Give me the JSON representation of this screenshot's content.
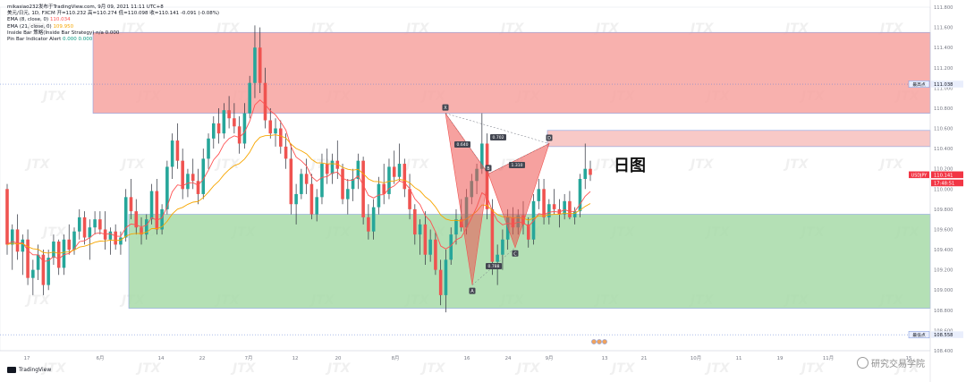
{
  "header": {
    "title_line": "美元/日元, 1D, FXCM  开=110.232  高=110.274  低=110.098  收=110.141  -0.091 (-0.08%)",
    "user_line": "mikasiao232发布于TradingView.com, 9月 09, 2021 11:11 UTC+8",
    "indicators": [
      {
        "name": "EMA (8, close, 0)",
        "value": "110.034",
        "color": "#ff5252"
      },
      {
        "name": "EMA (21, close, 0)",
        "value": "109.950",
        "color": "#f7a600"
      },
      {
        "name": "Inside Bar 策略(Inside Bar Strategy)",
        "value": "n/a  0.000",
        "color": "#131722"
      },
      {
        "name": "Pin Bar Indicator Alert",
        "value": "0.000  0.000",
        "color": "#089981"
      }
    ]
  },
  "branding": {
    "watermark": "JTX",
    "tradingview": "TradingView",
    "corner_watermark": "研究交易学院",
    "day_chart_label": "日图"
  },
  "chart_data": {
    "type": "candlestick",
    "symbol": "USDJPY",
    "ylim": [
      108.4,
      111.8
    ],
    "y_ticks": [
      "111.800",
      "111.600",
      "111.400",
      "111.200",
      "111.000",
      "110.800",
      "110.600",
      "110.400",
      "110.200",
      "110.000",
      "109.800",
      "109.600",
      "109.400",
      "109.200",
      "109.000",
      "108.800",
      "108.600",
      "108.400"
    ],
    "x_ticks": [
      "17",
      "6月",
      "14",
      "22",
      "7月",
      "12",
      "20",
      "8月",
      "16",
      "24",
      "9月",
      "13",
      "21",
      "10月",
      "11",
      "19",
      "11月",
      "15"
    ],
    "price_labels": [
      {
        "text": "110.141",
        "value": 110.141,
        "color": "#f23645"
      },
      {
        "text": "17:48:51",
        "value": 110.06,
        "color": "#f23645"
      },
      {
        "text": "111.038",
        "value": 111.038,
        "color": "#5b7bd5"
      },
      {
        "text": "108.558",
        "value": 108.558,
        "color": "#5b7bd5"
      }
    ],
    "axis_tags": [
      {
        "text": "USDJPY",
        "value": 110.141
      },
      {
        "text": "最高点",
        "value": 111.038
      },
      {
        "text": "最低点",
        "value": 108.558
      }
    ],
    "zones": [
      {
        "name": "resistance",
        "from": 110.75,
        "to": 111.55,
        "color": "#f7a3a0"
      },
      {
        "name": "resistance-thin",
        "from": 110.42,
        "to": 110.58,
        "color": "#f7c0bd"
      },
      {
        "name": "support",
        "from": 108.82,
        "to": 109.75,
        "color": "#a7dba8"
      }
    ],
    "harmonic": {
      "points": [
        {
          "label": "X",
          "value": 110.75
        },
        {
          "label": "A",
          "value": 109.05
        },
        {
          "label": "B",
          "value": 110.15
        },
        {
          "label": "C",
          "value": 109.42
        },
        {
          "label": "D",
          "value": 110.45
        }
      ],
      "ratios": [
        "0.640",
        "0.702",
        "0.788",
        "1.310"
      ]
    },
    "candles": [
      [
        110.0,
        110.05,
        109.35,
        109.45
      ],
      [
        109.45,
        109.65,
        109.2,
        109.6
      ],
      [
        109.6,
        109.75,
        109.3,
        109.38
      ],
      [
        109.38,
        109.55,
        109.15,
        109.5
      ],
      [
        109.5,
        109.6,
        109.05,
        109.12
      ],
      [
        109.12,
        109.3,
        108.95,
        109.2
      ],
      [
        109.2,
        109.45,
        109.1,
        109.35
      ],
      [
        109.35,
        109.4,
        108.95,
        109.05
      ],
      [
        109.05,
        109.4,
        109.0,
        109.32
      ],
      [
        109.32,
        109.55,
        109.25,
        109.48
      ],
      [
        109.48,
        109.5,
        109.15,
        109.22
      ],
      [
        109.22,
        109.55,
        109.15,
        109.5
      ],
      [
        109.5,
        109.65,
        109.35,
        109.4
      ],
      [
        109.4,
        109.62,
        109.35,
        109.58
      ],
      [
        109.58,
        109.8,
        109.5,
        109.72
      ],
      [
        109.72,
        109.78,
        109.45,
        109.52
      ],
      [
        109.52,
        109.7,
        109.3,
        109.62
      ],
      [
        109.62,
        109.78,
        109.55,
        109.7
      ],
      [
        109.7,
        109.78,
        109.55,
        109.6
      ],
      [
        109.6,
        109.78,
        109.4,
        109.5
      ],
      [
        109.5,
        109.62,
        109.35,
        109.58
      ],
      [
        109.58,
        109.65,
        109.4,
        109.45
      ],
      [
        109.45,
        109.58,
        109.35,
        109.52
      ],
      [
        109.52,
        110.0,
        109.48,
        109.92
      ],
      [
        109.92,
        110.1,
        109.7,
        109.78
      ],
      [
        109.78,
        109.9,
        109.55,
        109.62
      ],
      [
        109.62,
        109.72,
        109.45,
        109.55
      ],
      [
        109.55,
        109.75,
        109.5,
        109.7
      ],
      [
        109.7,
        110.05,
        109.65,
        109.98
      ],
      [
        109.98,
        110.1,
        109.55,
        109.6
      ],
      [
        109.6,
        109.85,
        109.55,
        109.8
      ],
      [
        109.8,
        110.28,
        109.75,
        110.22
      ],
      [
        110.22,
        110.55,
        110.1,
        110.48
      ],
      [
        110.48,
        110.65,
        110.2,
        110.28
      ],
      [
        110.28,
        110.4,
        109.9,
        110.0
      ],
      [
        110.0,
        110.2,
        109.92,
        110.15
      ],
      [
        110.15,
        110.3,
        110.0,
        110.08
      ],
      [
        110.08,
        110.2,
        109.85,
        109.95
      ],
      [
        109.95,
        110.4,
        109.9,
        110.3
      ],
      [
        110.3,
        110.55,
        110.2,
        110.5
      ],
      [
        110.5,
        110.72,
        110.4,
        110.65
      ],
      [
        110.65,
        110.8,
        110.45,
        110.55
      ],
      [
        110.55,
        110.85,
        110.5,
        110.78
      ],
      [
        110.78,
        110.92,
        110.6,
        110.7
      ],
      [
        110.7,
        110.85,
        110.55,
        110.62
      ],
      [
        110.62,
        110.72,
        110.35,
        110.45
      ],
      [
        110.45,
        110.85,
        110.4,
        110.75
      ],
      [
        110.75,
        111.12,
        110.7,
        111.05
      ],
      [
        111.05,
        111.62,
        110.9,
        111.4
      ],
      [
        111.4,
        111.6,
        110.95,
        111.05
      ],
      [
        111.05,
        111.2,
        110.6,
        110.68
      ],
      [
        110.68,
        110.8,
        110.5,
        110.55
      ],
      [
        110.55,
        110.7,
        110.42,
        110.6
      ],
      [
        110.6,
        110.68,
        110.35,
        110.42
      ],
      [
        110.42,
        110.55,
        110.2,
        110.3
      ],
      [
        110.3,
        110.45,
        109.75,
        109.85
      ],
      [
        109.85,
        110.05,
        109.65,
        109.95
      ],
      [
        109.95,
        110.2,
        109.9,
        110.15
      ],
      [
        110.15,
        110.3,
        109.95,
        110.05
      ],
      [
        110.05,
        110.15,
        109.7,
        109.75
      ],
      [
        109.75,
        110.0,
        109.68,
        109.92
      ],
      [
        109.92,
        110.35,
        109.85,
        110.25
      ],
      [
        110.25,
        110.4,
        110.05,
        110.15
      ],
      [
        110.15,
        110.35,
        110.05,
        110.28
      ],
      [
        110.28,
        110.48,
        110.1,
        110.2
      ],
      [
        110.2,
        110.25,
        109.85,
        109.9
      ],
      [
        109.9,
        110.1,
        109.75,
        110.0
      ],
      [
        110.0,
        110.2,
        109.88,
        110.1
      ],
      [
        110.1,
        110.35,
        110.0,
        110.28
      ],
      [
        110.28,
        110.32,
        109.65,
        109.72
      ],
      [
        109.72,
        109.85,
        109.5,
        109.58
      ],
      [
        109.58,
        109.9,
        109.5,
        109.82
      ],
      [
        109.82,
        110.12,
        109.75,
        110.05
      ],
      [
        110.05,
        110.25,
        109.85,
        109.95
      ],
      [
        109.95,
        110.3,
        109.9,
        110.22
      ],
      [
        110.22,
        110.38,
        110.05,
        110.12
      ],
      [
        110.12,
        110.45,
        110.08,
        110.25
      ],
      [
        110.25,
        110.3,
        109.92,
        110.0
      ],
      [
        110.0,
        110.15,
        109.7,
        109.8
      ],
      [
        109.8,
        109.85,
        109.45,
        109.55
      ],
      [
        109.55,
        109.7,
        109.35,
        109.65
      ],
      [
        109.65,
        109.78,
        109.25,
        109.35
      ],
      [
        109.35,
        109.6,
        109.28,
        109.5
      ],
      [
        109.5,
        109.58,
        109.15,
        109.2
      ],
      [
        109.2,
        109.3,
        108.85,
        108.95
      ],
      [
        108.95,
        109.4,
        108.78,
        109.3
      ],
      [
        109.3,
        109.62,
        109.25,
        109.55
      ],
      [
        109.55,
        109.8,
        109.45,
        109.7
      ],
      [
        109.7,
        109.9,
        109.58,
        109.62
      ],
      [
        109.62,
        110.0,
        109.55,
        109.92
      ],
      [
        109.92,
        110.15,
        109.85,
        110.08
      ],
      [
        110.08,
        110.25,
        109.95,
        110.2
      ],
      [
        110.2,
        110.75,
        110.15,
        110.45
      ],
      [
        110.45,
        110.55,
        109.7,
        109.8
      ],
      [
        109.8,
        109.9,
        109.15,
        109.28
      ],
      [
        109.28,
        109.45,
        109.05,
        109.35
      ],
      [
        109.35,
        109.6,
        109.2,
        109.5
      ],
      [
        109.5,
        109.8,
        109.4,
        109.72
      ],
      [
        109.72,
        109.82,
        109.55,
        109.62
      ],
      [
        109.62,
        109.8,
        109.55,
        109.74
      ],
      [
        109.74,
        109.88,
        109.55,
        109.65
      ],
      [
        109.65,
        109.72,
        109.42,
        109.5
      ],
      [
        109.5,
        109.95,
        109.45,
        109.88
      ],
      [
        109.88,
        110.1,
        109.8,
        110.0
      ],
      [
        110.0,
        110.1,
        109.65,
        109.72
      ],
      [
        109.72,
        109.9,
        109.65,
        109.85
      ],
      [
        109.85,
        110.0,
        109.75,
        109.8
      ],
      [
        109.8,
        109.9,
        109.62,
        109.75
      ],
      [
        109.75,
        109.95,
        109.7,
        109.88
      ],
      [
        109.88,
        109.98,
        109.7,
        109.72
      ],
      [
        109.72,
        109.82,
        109.65,
        109.78
      ],
      [
        109.78,
        110.15,
        109.72,
        110.1
      ],
      [
        110.1,
        110.45,
        110.0,
        110.2
      ],
      [
        110.2,
        110.28,
        110.08,
        110.14
      ]
    ]
  }
}
